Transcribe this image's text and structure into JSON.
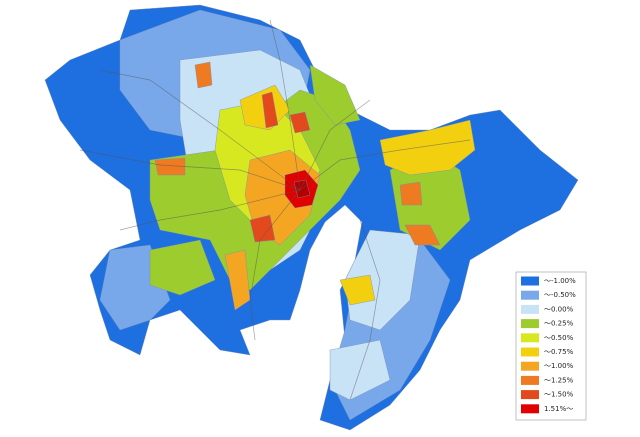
{
  "legend": {
    "items": [
      {
        "label": "～-1.00%",
        "color": "#1e6fe0"
      },
      {
        "label": "～-0.50%",
        "color": "#78a8ea"
      },
      {
        "label": "～0.00%",
        "color": "#c8e2f6"
      },
      {
        "label": "～0.25%",
        "color": "#9ccc2e"
      },
      {
        "label": "～0.50%",
        "color": "#d8e820"
      },
      {
        "label": "～0.75%",
        "color": "#f2d010"
      },
      {
        "label": "～1.00%",
        "color": "#f4a623"
      },
      {
        "label": "～1.25%",
        "color": "#ee7a22"
      },
      {
        "label": "～1.50%",
        "color": "#e24a1e"
      },
      {
        "label": "1.51%～",
        "color": "#e00000"
      }
    ]
  }
}
